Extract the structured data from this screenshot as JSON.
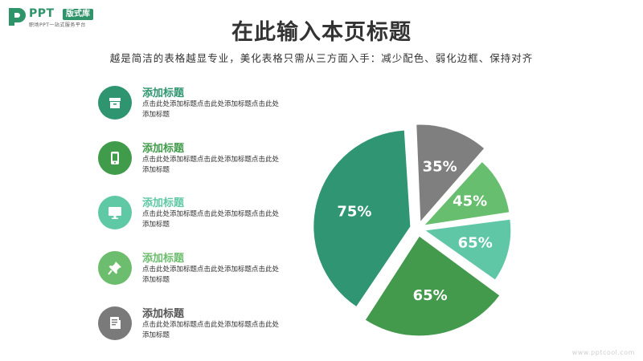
{
  "logo": {
    "name": "PPT",
    "badge": "版式库",
    "tagline": "职场PPT一站式服务平台"
  },
  "header": {
    "title": "在此输入本页标题",
    "subtitle": "越是简洁的表格越显专业，美化表格只需从三方面入手：减少配色、弱化边框、保持对齐"
  },
  "items": [
    {
      "title": "添加标题",
      "desc": "点击此处添加标题点击此处添加标题点击此处添加标题",
      "icon": "archive-box-icon",
      "color": "#2e9570"
    },
    {
      "title": "添加标题",
      "desc": "点击此处添加标题点击此处添加标题点击此处添加标题",
      "icon": "phone-icon",
      "color": "#409b4a"
    },
    {
      "title": "添加标题",
      "desc": "点击此处添加标题点击此处添加标题点击此处添加标题",
      "icon": "monitor-icon",
      "color": "#5fc8a4"
    },
    {
      "title": "添加标题",
      "desc": "点击此处添加标题点击此处添加标题点击此处添加标题",
      "icon": "pushpin-icon",
      "color": "#6dbd6e"
    },
    {
      "title": "添加标题",
      "desc": "点击此处添加标题点击此处添加标题点击此处添加标题",
      "icon": "document-icon",
      "color": "#7a7a7a"
    }
  ],
  "chart_data": {
    "type": "pie",
    "slices": [
      {
        "label": "35%",
        "share": 0.124,
        "color": "#7f7f7f"
      },
      {
        "label": "45%",
        "share": 0.112,
        "color": "#66be6e"
      },
      {
        "label": "65%",
        "share": 0.122,
        "color": "#5fc7a5"
      },
      {
        "label": "65%",
        "share": 0.243,
        "color": "#43994c"
      },
      {
        "label": "75%",
        "share": 0.399,
        "color": "#2f9572"
      }
    ]
  },
  "watermark": "www.pptcool.com"
}
